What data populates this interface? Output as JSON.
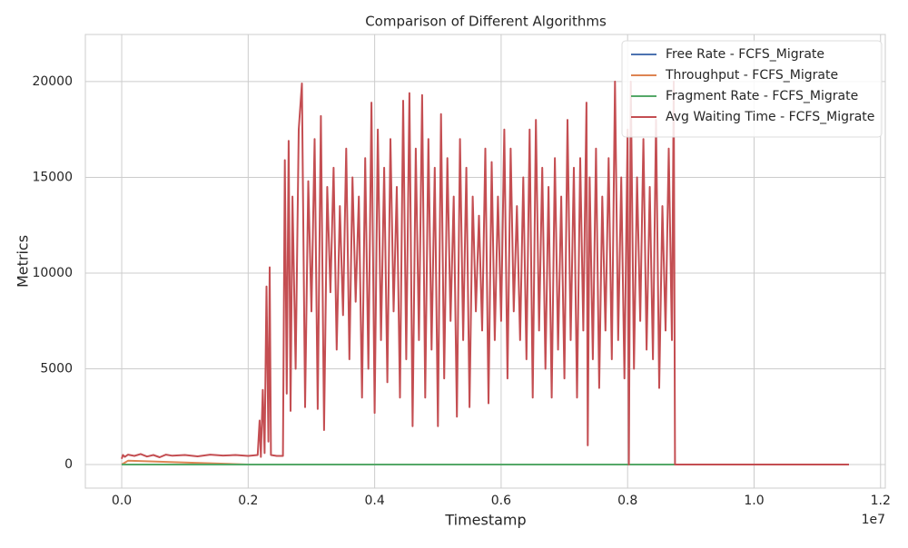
{
  "chart_data": {
    "type": "line",
    "title": "Comparison of Different Algorithms",
    "x_label": "Timestamp",
    "y_label": "Metrics",
    "x_offset_label": "1e7",
    "xlim": [
      -575000,
      12075000
    ],
    "ylim": [
      -1230,
      22460
    ],
    "xticks": [
      {
        "value": 0,
        "label": "0.0"
      },
      {
        "value": 2000000,
        "label": "0.2"
      },
      {
        "value": 4000000,
        "label": "0.4"
      },
      {
        "value": 6000000,
        "label": "0.6"
      },
      {
        "value": 8000000,
        "label": "0.8"
      },
      {
        "value": 10000000,
        "label": "1.0"
      },
      {
        "value": 12000000,
        "label": "1.2"
      }
    ],
    "yticks": [
      0,
      5000,
      10000,
      15000,
      20000
    ],
    "grid": true,
    "legend": "upper right",
    "series": [
      {
        "name": "Free Rate - FCFS_Migrate",
        "color": "#4c72b0",
        "x": [
          0,
          8750000,
          11500000
        ],
        "values": [
          1,
          1,
          1
        ]
      },
      {
        "name": "Throughput - FCFS_Migrate",
        "color": "#dd8452",
        "x": [
          0,
          100000,
          2000000,
          11500000
        ],
        "values": [
          0,
          200,
          0,
          0
        ]
      },
      {
        "name": "Fragment Rate - FCFS_Migrate",
        "color": "#55a868",
        "x": [
          0,
          11500000
        ],
        "values": [
          0,
          0
        ]
      },
      {
        "name": "Avg Waiting Time - FCFS_Migrate",
        "color": "#c44e52",
        "x": [
          0,
          20000,
          50000,
          100000,
          200000,
          300000,
          400000,
          500000,
          600000,
          700000,
          800000,
          1000000,
          1200000,
          1400000,
          1600000,
          1800000,
          2000000,
          2150000,
          2180000,
          2200000,
          2230000,
          2260000,
          2290000,
          2320000,
          2340000,
          2360000,
          2450000,
          2550000,
          2580000,
          2610000,
          2640000,
          2670000,
          2700000,
          2750000,
          2800000,
          2850000,
          2900000,
          2950000,
          3000000,
          3050000,
          3100000,
          3150000,
          3200000,
          3250000,
          3300000,
          3350000,
          3400000,
          3450000,
          3500000,
          3550000,
          3600000,
          3650000,
          3700000,
          3750000,
          3800000,
          3850000,
          3900000,
          3950000,
          4000000,
          4050000,
          4100000,
          4150000,
          4200000,
          4250000,
          4300000,
          4350000,
          4400000,
          4450000,
          4500000,
          4550000,
          4600000,
          4650000,
          4700000,
          4750000,
          4800000,
          4850000,
          4900000,
          4950000,
          5000000,
          5050000,
          5100000,
          5150000,
          5200000,
          5250000,
          5300000,
          5350000,
          5400000,
          5450000,
          5500000,
          5550000,
          5600000,
          5650000,
          5700000,
          5750000,
          5800000,
          5850000,
          5900000,
          5950000,
          6000000,
          6050000,
          6100000,
          6150000,
          6200000,
          6250000,
          6300000,
          6350000,
          6400000,
          6450000,
          6500000,
          6550000,
          6600000,
          6650000,
          6700000,
          6750000,
          6800000,
          6850000,
          6900000,
          6950000,
          7000000,
          7050000,
          7100000,
          7150000,
          7200000,
          7250000,
          7300000,
          7350000,
          7370000,
          7400000,
          7450000,
          7500000,
          7550000,
          7600000,
          7650000,
          7700000,
          7750000,
          7800000,
          7850000,
          7900000,
          7950000,
          8000000,
          8020000,
          8050000,
          8100000,
          8150000,
          8200000,
          8250000,
          8300000,
          8350000,
          8400000,
          8450000,
          8500000,
          8550000,
          8600000,
          8650000,
          8700000,
          8730000,
          8750000,
          8760000,
          11500000
        ],
        "values": [
          300,
          500,
          400,
          520,
          450,
          550,
          420,
          500,
          380,
          520,
          460,
          500,
          430,
          520,
          470,
          500,
          450,
          500,
          2300,
          400,
          3900,
          600,
          9300,
          1200,
          10300,
          500,
          450,
          450,
          15900,
          3700,
          16900,
          2800,
          14000,
          5000,
          17500,
          19900,
          3000,
          14800,
          8000,
          17000,
          2900,
          18200,
          1800,
          14500,
          9000,
          15500,
          6000,
          13500,
          7800,
          16500,
          5500,
          15000,
          8500,
          14000,
          3500,
          16000,
          5000,
          18900,
          2700,
          17500,
          6500,
          15500,
          4300,
          17000,
          8000,
          14500,
          3500,
          19000,
          5500,
          19400,
          2000,
          16500,
          6500,
          19300,
          3500,
          17000,
          6000,
          15500,
          2000,
          18300,
          4500,
          16000,
          7500,
          14000,
          2500,
          17000,
          6500,
          15500,
          3000,
          14000,
          8000,
          13000,
          7000,
          16500,
          3200,
          15800,
          6500,
          14000,
          7500,
          17500,
          4500,
          16500,
          8000,
          13500,
          6500,
          15000,
          5500,
          17500,
          3500,
          18000,
          7000,
          15500,
          5000,
          14500,
          3500,
          16000,
          6000,
          14000,
          4500,
          18000,
          6500,
          15500,
          3500,
          16000,
          7000,
          18900,
          1000,
          15000,
          5500,
          16500,
          4000,
          14000,
          7000,
          16000,
          5500,
          20000,
          6500,
          15000,
          4500,
          17500,
          0,
          20000,
          5000,
          15000,
          7500,
          17000,
          6000,
          14500,
          5500,
          18000,
          4000,
          13500,
          7000,
          16500,
          6500,
          20000,
          0,
          0,
          0
        ]
      }
    ]
  }
}
